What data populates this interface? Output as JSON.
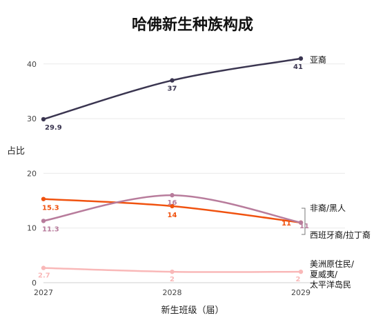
{
  "chart_data": {
    "type": "line",
    "title": "哈佛新生种族构成",
    "xlabel": "新生班级（届）",
    "ylabel": "占比",
    "x": [
      "2027",
      "2028",
      "2029"
    ],
    "yticks": [
      "0",
      "10",
      "20",
      "30",
      "40"
    ],
    "ylim": [
      0,
      45
    ],
    "grid": "horizontal",
    "series": [
      {
        "name": "亚裔",
        "values": [
          29.9,
          37,
          41
        ],
        "value_labels": [
          "29.9",
          "37",
          "41"
        ],
        "color": "#3a3550"
      },
      {
        "name": "非裔/黑人",
        "values": [
          15.3,
          14,
          11
        ],
        "value_labels": [
          "15.3",
          "14",
          "11"
        ],
        "color": "#f0520f"
      },
      {
        "name": "西班牙裔/拉丁裔",
        "values": [
          11.3,
          16,
          11
        ],
        "value_labels": [
          "11.3",
          "16",
          "11"
        ],
        "color": "#b87c9c"
      },
      {
        "name": "美洲原住民/夏威夷/太平洋岛民",
        "label_lines": [
          "美洲原住民/",
          "夏威夷/",
          "太平洋岛民"
        ],
        "values": [
          2.7,
          2,
          2
        ],
        "value_labels": [
          "2.7",
          "2",
          "2"
        ],
        "color": "#f9b8b8"
      }
    ]
  }
}
